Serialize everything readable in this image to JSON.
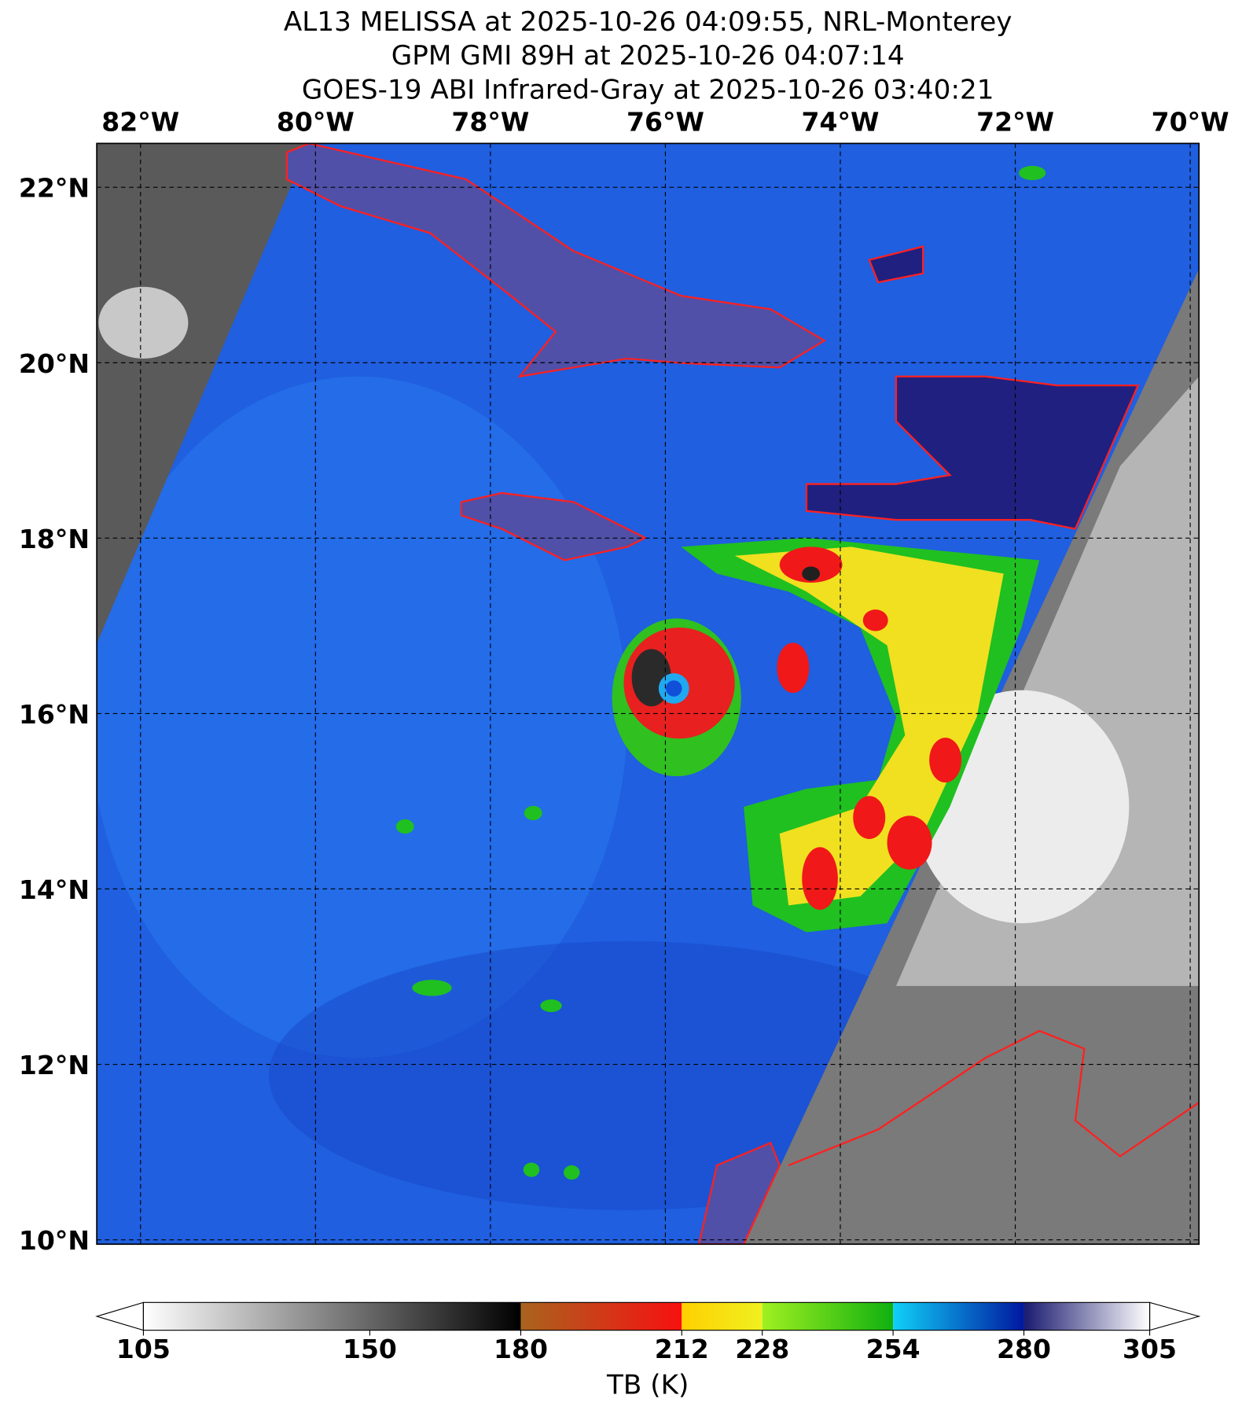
{
  "chart_data": {
    "type": "map",
    "title": [
      "AL13 MELISSA at 2025-10-26 04:09:55, NRL-Monterey",
      "GPM GMI 89H at 2025-10-26 04:07:14",
      "GOES-19 ABI Infrared-Gray at 2025-10-26 03:40:21"
    ],
    "xlim": [
      -82.5,
      -69.9
    ],
    "ylim": [
      9.95,
      22.5
    ],
    "xticks": [
      {
        "value": -82,
        "label": "82°W"
      },
      {
        "value": -80,
        "label": "80°W"
      },
      {
        "value": -78,
        "label": "78°W"
      },
      {
        "value": -76,
        "label": "76°W"
      },
      {
        "value": -74,
        "label": "74°W"
      },
      {
        "value": -72,
        "label": "72°W"
      },
      {
        "value": -70,
        "label": "70°W"
      }
    ],
    "yticks": [
      {
        "value": 22,
        "label": "22°N"
      },
      {
        "value": 20,
        "label": "20°N"
      },
      {
        "value": 18,
        "label": "18°N"
      },
      {
        "value": 16,
        "label": "16°N"
      },
      {
        "value": 14,
        "label": "14°N"
      },
      {
        "value": 12,
        "label": "12°N"
      },
      {
        "value": 10,
        "label": "10°N"
      }
    ],
    "grid": true,
    "colorbar": {
      "label": "TB (K)",
      "lim": [
        105,
        305
      ],
      "ticks": [
        105,
        150,
        180,
        212,
        228,
        254,
        280,
        305
      ],
      "segments": [
        {
          "from": 105,
          "to": 180,
          "colors": [
            "#ffffff",
            "#000000"
          ]
        },
        {
          "from": 180,
          "to": 212,
          "colors": [
            "#a8641e",
            "#f81010"
          ]
        },
        {
          "from": 212,
          "to": 228,
          "colors": [
            "#ffd000",
            "#f0f020"
          ]
        },
        {
          "from": 228,
          "to": 254,
          "colors": [
            "#a0f020",
            "#10b010"
          ]
        },
        {
          "from": 254,
          "to": 280,
          "colors": [
            "#10d0f8",
            "#0018a0"
          ]
        },
        {
          "from": 280,
          "to": 305,
          "colors": [
            "#1a1a70",
            "#ffffff"
          ]
        }
      ]
    }
  }
}
